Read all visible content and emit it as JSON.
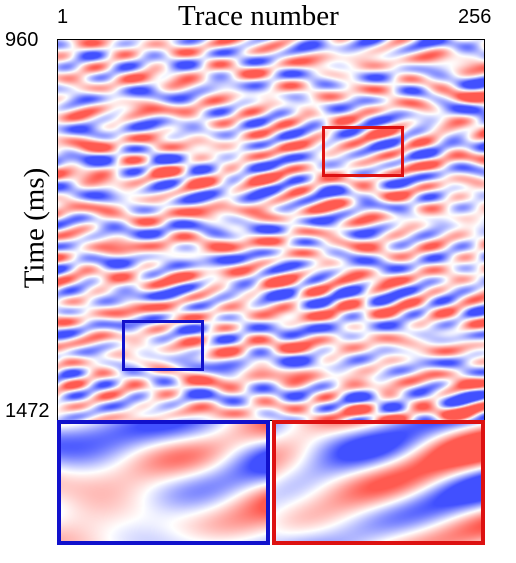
{
  "figure": {
    "x_axis_title": "Trace number",
    "y_axis_title": "Time (ms)",
    "x_start_label": "1",
    "x_end_label": "256",
    "y_start_label": "960",
    "y_end_label": "1472"
  },
  "colors": {
    "positive": "#e03030",
    "negative": "#3040e0",
    "highlight_red": "#dd1111",
    "highlight_blue": "#1111cc"
  },
  "highlights": [
    {
      "name": "red-region-box",
      "color": "red"
    },
    {
      "name": "blue-region-box",
      "color": "blue"
    }
  ]
}
